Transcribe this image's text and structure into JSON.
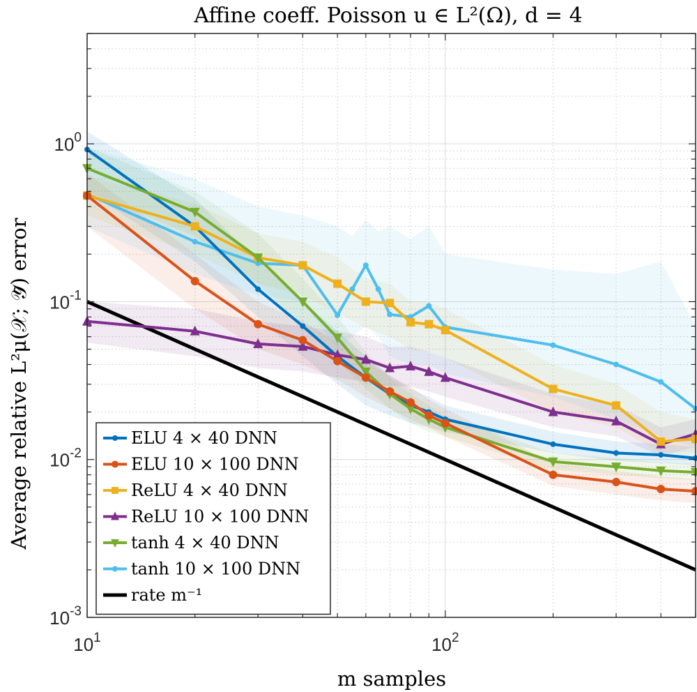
{
  "chart_data": {
    "type": "line",
    "title": "Affine coeff. Poisson u ∈ L²(Ω), d = 4",
    "xlabel": "m samples",
    "ylabel": "Average relative L²μ(𝒳; 𝒴̃) error",
    "xscale": "log",
    "yscale": "log",
    "xlim": [
      10,
      500
    ],
    "ylim": [
      0.001,
      5
    ],
    "x_ticks": [
      {
        "value": 10,
        "base": "10",
        "exp": "1"
      },
      {
        "value": 100,
        "base": "10",
        "exp": "2"
      }
    ],
    "y_ticks": [
      {
        "value": 0.001,
        "base": "10",
        "exp": "-3"
      },
      {
        "value": 0.01,
        "base": "10",
        "exp": "-2"
      },
      {
        "value": 0.1,
        "base": "10",
        "exp": "-1"
      },
      {
        "value": 1,
        "base": "10",
        "exp": "0"
      }
    ],
    "grid": true,
    "legend_position": "bottom-left",
    "series": [
      {
        "name": "ELU 4 × 40 DNN",
        "color": "#0072BD",
        "marker": "dot",
        "x": [
          10,
          20,
          30,
          40,
          50,
          60,
          70,
          80,
          90,
          100,
          200,
          300,
          400,
          500
        ],
        "y": [
          0.92,
          0.3,
          0.12,
          0.07,
          0.045,
          0.033,
          0.026,
          0.022,
          0.02,
          0.018,
          0.0125,
          0.011,
          0.0107,
          0.0102
        ],
        "band_lo": [
          0.5,
          0.18,
          0.08,
          0.045,
          0.03,
          0.022,
          0.019,
          0.017,
          0.016,
          0.015,
          0.011,
          0.0098,
          0.0095,
          0.0092
        ],
        "band_hi": [
          1.2,
          0.45,
          0.18,
          0.1,
          0.065,
          0.045,
          0.034,
          0.028,
          0.025,
          0.022,
          0.015,
          0.013,
          0.0125,
          0.012
        ]
      },
      {
        "name": "ELU 10 × 100 DNN",
        "color": "#D95319",
        "marker": "circle",
        "x": [
          10,
          20,
          30,
          40,
          50,
          60,
          70,
          80,
          90,
          100,
          200,
          300,
          400,
          500
        ],
        "y": [
          0.47,
          0.135,
          0.072,
          0.057,
          0.042,
          0.033,
          0.027,
          0.023,
          0.019,
          0.017,
          0.008,
          0.0072,
          0.0065,
          0.0063
        ],
        "band_lo": [
          0.3,
          0.09,
          0.05,
          0.04,
          0.032,
          0.025,
          0.021,
          0.018,
          0.016,
          0.014,
          0.0068,
          0.006,
          0.0055,
          0.0053
        ],
        "band_hi": [
          0.65,
          0.2,
          0.1,
          0.075,
          0.055,
          0.042,
          0.034,
          0.029,
          0.024,
          0.021,
          0.0095,
          0.0085,
          0.0078,
          0.0075
        ]
      },
      {
        "name": "ReLU 4 × 40 DNN",
        "color": "#EDB120",
        "marker": "square",
        "x": [
          10,
          20,
          30,
          40,
          50,
          60,
          70,
          80,
          90,
          100,
          200,
          300,
          400,
          500
        ],
        "y": [
          0.47,
          0.3,
          0.19,
          0.17,
          0.13,
          0.1,
          0.098,
          0.074,
          0.072,
          0.066,
          0.028,
          0.022,
          0.013,
          0.0135
        ],
        "band_lo": [
          0.35,
          0.2,
          0.13,
          0.11,
          0.085,
          0.068,
          0.06,
          0.05,
          0.048,
          0.044,
          0.02,
          0.016,
          0.011,
          0.011
        ],
        "band_hi": [
          0.62,
          0.42,
          0.27,
          0.24,
          0.19,
          0.14,
          0.13,
          0.1,
          0.1,
          0.09,
          0.04,
          0.03,
          0.02,
          0.018
        ]
      },
      {
        "name": "ReLU 10 × 100 DNN",
        "color": "#7E2F8E",
        "marker": "triangle-up",
        "x": [
          10,
          20,
          30,
          40,
          50,
          60,
          70,
          80,
          90,
          100,
          200,
          300,
          400,
          500
        ],
        "y": [
          0.075,
          0.065,
          0.054,
          0.052,
          0.046,
          0.043,
          0.038,
          0.039,
          0.036,
          0.033,
          0.02,
          0.0175,
          0.0125,
          0.0145
        ],
        "band_lo": [
          0.055,
          0.045,
          0.038,
          0.036,
          0.033,
          0.031,
          0.029,
          0.029,
          0.027,
          0.025,
          0.016,
          0.014,
          0.0105,
          0.012
        ],
        "band_hi": [
          0.1,
          0.09,
          0.075,
          0.07,
          0.065,
          0.06,
          0.052,
          0.052,
          0.048,
          0.044,
          0.026,
          0.022,
          0.016,
          0.018
        ]
      },
      {
        "name": "tanh 4 × 40 DNN",
        "color": "#77AC30",
        "marker": "triangle-down",
        "x": [
          10,
          20,
          30,
          40,
          50,
          60,
          70,
          80,
          90,
          100,
          200,
          300,
          400,
          500
        ],
        "y": [
          0.7,
          0.37,
          0.19,
          0.1,
          0.059,
          0.036,
          0.026,
          0.021,
          0.018,
          0.016,
          0.0097,
          0.009,
          0.0085,
          0.0083
        ],
        "band_lo": [
          0.5,
          0.26,
          0.13,
          0.07,
          0.042,
          0.028,
          0.021,
          0.017,
          0.015,
          0.014,
          0.0086,
          0.008,
          0.0076,
          0.0074
        ],
        "band_hi": [
          0.95,
          0.5,
          0.27,
          0.14,
          0.08,
          0.048,
          0.033,
          0.026,
          0.022,
          0.019,
          0.011,
          0.0102,
          0.0096,
          0.0094
        ]
      },
      {
        "name": "tanh 10 × 100 DNN",
        "color": "#4DBEEE",
        "marker": "dot",
        "x": [
          10,
          20,
          30,
          40,
          50,
          55,
          60,
          65,
          70,
          80,
          90,
          100,
          200,
          300,
          400,
          500
        ],
        "y": [
          0.48,
          0.24,
          0.175,
          0.17,
          0.082,
          0.12,
          0.17,
          0.12,
          0.083,
          0.08,
          0.094,
          0.069,
          0.053,
          0.04,
          0.031,
          0.021
        ],
        "band_lo": [
          0.3,
          0.15,
          0.11,
          0.1,
          0.05,
          0.06,
          0.07,
          0.06,
          0.045,
          0.04,
          0.04,
          0.035,
          0.025,
          0.018,
          0.014,
          0.012
        ],
        "band_hi": [
          0.95,
          0.6,
          0.4,
          0.35,
          0.3,
          0.26,
          0.33,
          0.28,
          0.3,
          0.25,
          0.3,
          0.2,
          0.16,
          0.15,
          0.18,
          0.07
        ]
      },
      {
        "name": "rate m⁻¹",
        "color": "#000000",
        "marker": "none",
        "x": [
          10,
          500
        ],
        "y": [
          0.1,
          0.002
        ]
      }
    ]
  },
  "legend": [
    {
      "label": "ELU 4 × 40 DNN",
      "color": "#0072BD",
      "marker": "dot"
    },
    {
      "label": "ELU 10 × 100 DNN",
      "color": "#D95319",
      "marker": "circle"
    },
    {
      "label": "ReLU 4 × 40 DNN",
      "color": "#EDB120",
      "marker": "square"
    },
    {
      "label": "ReLU 10 × 100 DNN",
      "color": "#7E2F8E",
      "marker": "triangle-up"
    },
    {
      "label": "tanh 4 × 40 DNN",
      "color": "#77AC30",
      "marker": "triangle-down"
    },
    {
      "label": "tanh 10 × 100 DNN",
      "color": "#4DBEEE",
      "marker": "dot"
    },
    {
      "label": "rate m⁻¹",
      "color": "#000000",
      "marker": "none"
    }
  ]
}
